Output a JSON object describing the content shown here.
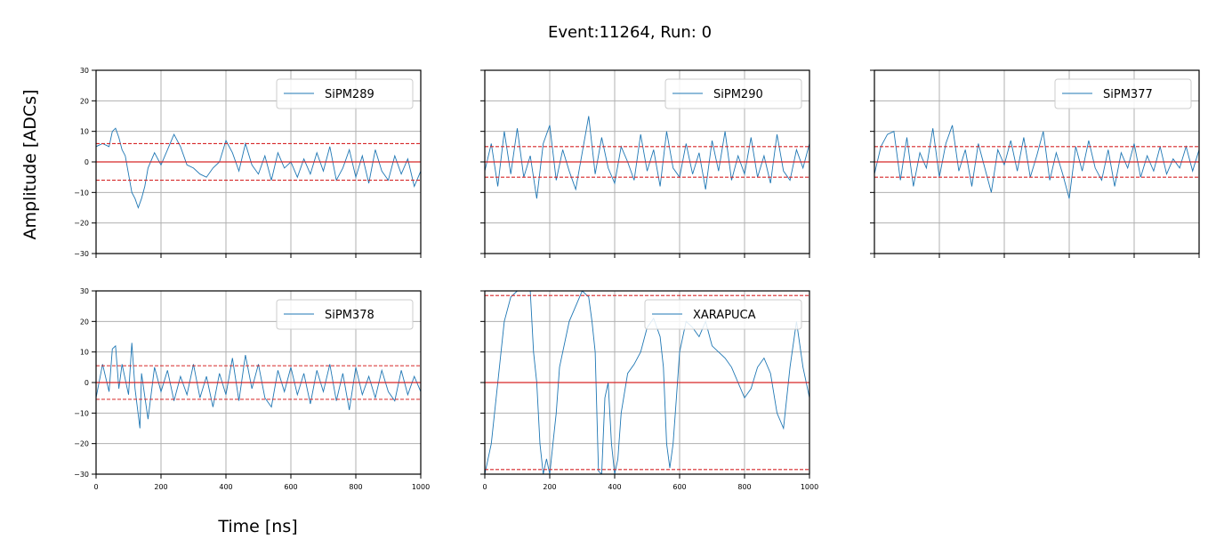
{
  "title": "Event:11264, Run: 0",
  "xlabel": "Time [ns]",
  "ylabel": "Amplitude [ADCs]",
  "colors": {
    "signal": "#1f77b4",
    "baseline": "#d62728",
    "grid": "#b0b0b0"
  },
  "chart_data": [
    {
      "type": "line",
      "row": 0,
      "col": 0,
      "name": "SiPM289",
      "xlim": [
        0,
        1000
      ],
      "ylim": [
        -30,
        30
      ],
      "x_ticks": [
        "0",
        "200",
        "400",
        "600",
        "800",
        "1000"
      ],
      "y_ticks": [
        "30",
        "20",
        "10",
        "0",
        "−10",
        "−20",
        "−30"
      ],
      "show_xtick_labels": false,
      "show_ytick_labels": true,
      "baseline": 0,
      "threshold": 6,
      "x": [
        0,
        20,
        40,
        50,
        60,
        70,
        80,
        90,
        100,
        110,
        120,
        130,
        140,
        150,
        160,
        180,
        200,
        220,
        240,
        260,
        280,
        300,
        320,
        340,
        360,
        380,
        400,
        420,
        440,
        460,
        480,
        500,
        520,
        540,
        560,
        580,
        600,
        620,
        640,
        660,
        680,
        700,
        720,
        740,
        760,
        780,
        800,
        820,
        840,
        860,
        880,
        900,
        920,
        940,
        960,
        980,
        1000
      ],
      "y": [
        5,
        6,
        5,
        10,
        11,
        8,
        4,
        2,
        -4,
        -10,
        -12,
        -15,
        -12,
        -8,
        -2,
        3,
        -1,
        4,
        9,
        5,
        -1,
        -2,
        -4,
        -5,
        -2,
        0,
        7,
        3,
        -3,
        6,
        -1,
        -4,
        2,
        -6,
        3,
        -2,
        0,
        -5,
        1,
        -4,
        3,
        -3,
        5,
        -6,
        -2,
        4,
        -5,
        2,
        -7,
        4,
        -3,
        -6,
        2,
        -4,
        1,
        -8,
        -3
      ]
    },
    {
      "type": "line",
      "row": 0,
      "col": 1,
      "name": "SiPM290",
      "xlim": [
        0,
        1000
      ],
      "ylim": [
        -30,
        30
      ],
      "x_ticks": [
        "0",
        "200",
        "400",
        "600",
        "800",
        "1000"
      ],
      "y_ticks": [
        "30",
        "20",
        "10",
        "0",
        "−10",
        "−20",
        "−30"
      ],
      "show_xtick_labels": false,
      "show_ytick_labels": false,
      "baseline": 0,
      "threshold": 5,
      "x": [
        0,
        20,
        40,
        60,
        80,
        100,
        120,
        140,
        160,
        180,
        200,
        220,
        240,
        260,
        280,
        300,
        320,
        340,
        360,
        380,
        400,
        420,
        440,
        460,
        480,
        500,
        520,
        540,
        560,
        580,
        600,
        620,
        640,
        660,
        680,
        700,
        720,
        740,
        760,
        780,
        800,
        820,
        840,
        860,
        880,
        900,
        920,
        940,
        960,
        980,
        1000
      ],
      "y": [
        -3,
        6,
        -8,
        10,
        -4,
        11,
        -5,
        2,
        -12,
        6,
        12,
        -6,
        4,
        -3,
        -9,
        3,
        15,
        -4,
        8,
        -2,
        -7,
        5,
        0,
        -6,
        9,
        -3,
        4,
        -8,
        10,
        -2,
        -5,
        6,
        -4,
        3,
        -9,
        7,
        -3,
        10,
        -6,
        2,
        -4,
        8,
        -5,
        2,
        -7,
        9,
        -3,
        -6,
        4,
        -2,
        6
      ]
    },
    {
      "type": "line",
      "row": 0,
      "col": 2,
      "name": "SiPM377",
      "xlim": [
        0,
        1000
      ],
      "ylim": [
        -30,
        30
      ],
      "x_ticks": [
        "0",
        "200",
        "400",
        "600",
        "800",
        "1000"
      ],
      "y_ticks": [
        "30",
        "20",
        "10",
        "0",
        "−10",
        "−20",
        "−30"
      ],
      "show_xtick_labels": false,
      "show_ytick_labels": false,
      "baseline": 0,
      "threshold": 5,
      "x": [
        0,
        20,
        40,
        60,
        80,
        100,
        120,
        140,
        160,
        180,
        200,
        220,
        240,
        260,
        280,
        300,
        320,
        340,
        360,
        380,
        400,
        420,
        440,
        460,
        480,
        500,
        520,
        540,
        560,
        580,
        600,
        620,
        640,
        660,
        680,
        700,
        720,
        740,
        760,
        780,
        800,
        820,
        840,
        860,
        880,
        900,
        920,
        940,
        960,
        980,
        1000
      ],
      "y": [
        -4,
        5,
        9,
        10,
        -6,
        8,
        -8,
        3,
        -2,
        11,
        -5,
        6,
        12,
        -3,
        4,
        -8,
        6,
        -2,
        -10,
        4,
        -1,
        7,
        -3,
        8,
        -5,
        2,
        10,
        -6,
        3,
        -4,
        -12,
        5,
        -3,
        7,
        -2,
        -6,
        4,
        -8,
        3,
        -2,
        6,
        -5,
        2,
        -3,
        5,
        -4,
        1,
        -2,
        5,
        -3,
        4
      ]
    },
    {
      "type": "line",
      "row": 1,
      "col": 0,
      "name": "SiPM378",
      "xlim": [
        0,
        1000
      ],
      "ylim": [
        -30,
        30
      ],
      "x_ticks": [
        "0",
        "200",
        "400",
        "600",
        "800",
        "1000"
      ],
      "y_ticks": [
        "30",
        "20",
        "10",
        "0",
        "−10",
        "−20",
        "−30"
      ],
      "show_xtick_labels": true,
      "show_ytick_labels": true,
      "baseline": 0,
      "threshold": 5.5,
      "x": [
        0,
        20,
        40,
        50,
        60,
        70,
        80,
        100,
        110,
        120,
        135,
        140,
        160,
        180,
        200,
        220,
        240,
        260,
        280,
        300,
        320,
        340,
        360,
        380,
        400,
        420,
        440,
        460,
        480,
        500,
        520,
        540,
        560,
        580,
        600,
        620,
        640,
        660,
        680,
        700,
        720,
        740,
        760,
        780,
        800,
        820,
        840,
        860,
        880,
        900,
        920,
        940,
        960,
        980,
        1000
      ],
      "y": [
        -5,
        6,
        -3,
        11,
        12,
        -2,
        6,
        -4,
        13,
        -2,
        -15,
        3,
        -12,
        5,
        -3,
        4,
        -6,
        2,
        -4,
        6,
        -5,
        2,
        -8,
        3,
        -4,
        8,
        -6,
        9,
        -2,
        6,
        -5,
        -8,
        4,
        -3,
        5,
        -4,
        3,
        -7,
        4,
        -3,
        6,
        -6,
        3,
        -9,
        5,
        -4,
        2,
        -5,
        4,
        -3,
        -6,
        4,
        -4,
        2,
        -3
      ]
    },
    {
      "type": "line",
      "row": 1,
      "col": 1,
      "name": "XARAPUCA",
      "xlim": [
        0,
        1000
      ],
      "ylim": [
        -30,
        30
      ],
      "x_ticks": [
        "0",
        "200",
        "400",
        "600",
        "800",
        "1000"
      ],
      "y_ticks": [
        "30",
        "20",
        "10",
        "0",
        "−10",
        "−20",
        "−30"
      ],
      "show_xtick_labels": true,
      "show_ytick_labels": false,
      "baseline": 0,
      "threshold": 28.5,
      "x": [
        0,
        20,
        40,
        60,
        80,
        100,
        120,
        140,
        150,
        160,
        170,
        180,
        190,
        200,
        210,
        220,
        230,
        240,
        260,
        280,
        300,
        320,
        330,
        340,
        350,
        360,
        370,
        380,
        390,
        400,
        410,
        420,
        440,
        460,
        480,
        500,
        520,
        540,
        550,
        560,
        570,
        580,
        590,
        600,
        620,
        640,
        660,
        680,
        700,
        720,
        740,
        760,
        780,
        800,
        820,
        840,
        860,
        880,
        900,
        920,
        940,
        960,
        980,
        1000
      ],
      "y": [
        -30,
        -20,
        0,
        20,
        28,
        30,
        32,
        30,
        10,
        0,
        -20,
        -30,
        -25,
        -30,
        -20,
        -10,
        5,
        10,
        20,
        25,
        30,
        28,
        20,
        10,
        -29,
        -30,
        -5,
        0,
        -20,
        -30,
        -25,
        -10,
        3,
        6,
        10,
        18,
        21,
        15,
        5,
        -20,
        -28,
        -20,
        -5,
        10,
        20,
        18,
        15,
        20,
        12,
        10,
        8,
        5,
        0,
        -5,
        -2,
        5,
        8,
        3,
        -10,
        -15,
        5,
        20,
        5,
        -5
      ]
    }
  ]
}
